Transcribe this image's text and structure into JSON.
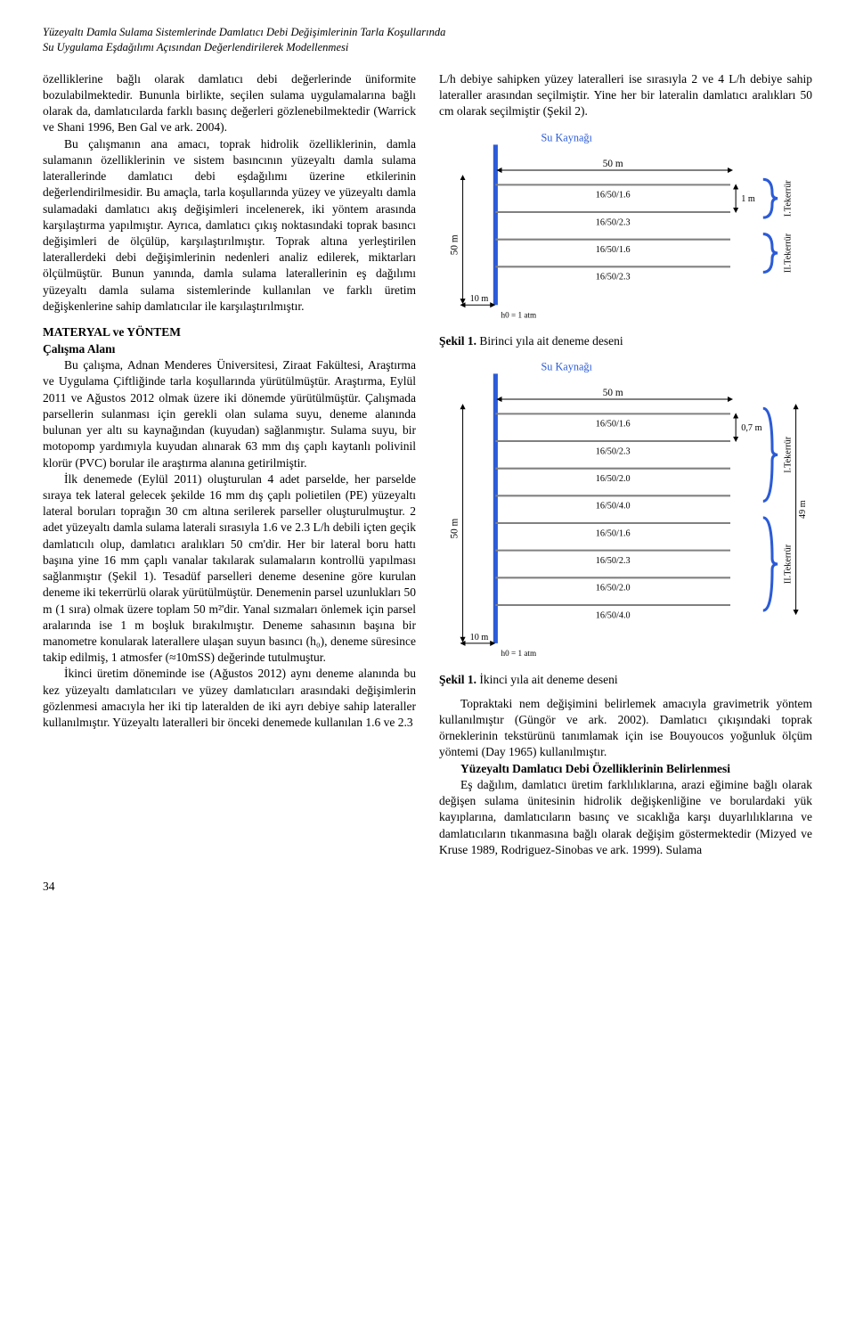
{
  "header": {
    "line1": "Yüzeyaltı Damla Sulama Sistemlerinde Damlatıcı Debi Değişimlerinin Tarla Koşullarında",
    "line2": "Su Uygulama Eşdağılımı Açısından Değerlendirilerek Modellenmesi"
  },
  "text": {
    "intro1": "özelliklerine bağlı olarak damlatıcı debi değerlerinde üniformite bozulabilmektedir. Bununla birlikte, seçilen sulama uygulamalarına bağlı olarak da, damlatıcılarda farklı basınç değerleri gözlenebilmektedir (Warrick ve Shani 1996, Ben Gal ve ark. 2004).",
    "intro2": "Bu çalışmanın ana amacı, toprak hidrolik özelliklerinin, damla sulamanın özelliklerinin ve sistem basıncının yüzeyaltı damla sulama laterallerinde damlatıcı debi eşdağılımı üzerine etkilerinin değerlendirilmesidir. Bu amaçla, tarla koşullarında yüzey ve yüzeyaltı damla sulamadaki damlatıcı akış değişimleri incelenerek, iki yöntem arasında karşılaştırma yapılmıştır. Ayrıca, damlatıcı çıkış noktasındaki toprak basıncı değişimleri de ölçülüp, karşılaştırılmıştır. Toprak altına yerleştirilen laterallerdeki debi değişimlerinin nedenleri analiz edilerek, miktarları ölçülmüştür. Bunun yanında, damla sulama laterallerinin eş dağılımı yüzeyaltı damla sulama sistemlerinde kullanılan ve farklı üretim değişkenlerine sahip damlatıcılar ile karşılaştırılmıştır.",
    "mat_title": "MATERYAL ve YÖNTEM",
    "study_title": "Çalışma Alanı",
    "study1": "Bu çalışma, Adnan Menderes Üniversitesi, Ziraat Fakültesi, Araştırma ve Uygulama Çiftliğinde tarla koşullarında yürütülmüştür. Araştırma, Eylül 2011 ve Ağustos 2012 olmak üzere iki dönemde yürütülmüştür. Çalışmada parsellerin sulanması için gerekli olan sulama suyu, deneme alanında bulunan yer altı su kaynağından (kuyudan) sağlanmıştır. Sulama suyu, bir motopomp yardımıyla kuyudan alınarak 63 mm dış çaplı kaytanlı polivinil klorür (PVC) borular ile araştırma alanına getirilmiştir.",
    "study2": "İlk denemede (Eylül 2011) oluşturulan 4 adet parselde, her parselde sıraya tek lateral gelecek şekilde 16 mm dış çaplı polietilen (PE) yüzeyaltı lateral boruları toprağın 30 cm altına serilerek parseller oluşturulmuştur. 2 adet yüzeyaltı damla sulama laterali sırasıyla 1.6 ve 2.3 L/h debili içten geçik damlatıcılı olup, damlatıcı aralıkları 50 cm'dir. Her bir lateral boru hattı başına yine 16 mm çaplı vanalar takılarak sulamaların kontrollü yapılması sağlanmıştır (Şekil 1). Tesadüf parselleri deneme desenine göre kurulan deneme iki tekerrürlü olarak yürütülmüştür. Denemenin parsel uzunlukları 50 m (1 sıra) olmak üzere toplam 50 m²'dir. Yanal sızmaları önlemek için parsel aralarında ise 1 m boşluk bırakılmıştır. Deneme sahasının başına bir manometre konularak laterallere ulaşan suyun basıncı (h₀), deneme süresince takip edilmiş, 1 atmosfer (≈10mSS) değerinde tutulmuştur.",
    "study3": "İkinci üretim döneminde ise (Ağustos 2012) aynı deneme alanında bu kez yüzeyaltı damlatıcıları ve yüzey damlatıcıları arasındaki değişimlerin gözlenmesi amacıyla her iki tip lateralden de iki ayrı debiye sahip lateraller kullanılmıştır. Yüzeyaltı lateralleri bir önceki denemede kullanılan 1.6 ve 2.3",
    "right1": "L/h debiye sahipken yüzey lateralleri ise sırasıyla 2 ve 4 L/h debiye sahip lateraller arasından seçilmiştir. Yine her bir lateralin damlatıcı aralıkları 50 cm olarak seçilmiştir (Şekil 2).",
    "caption1_b": "Şekil 1.",
    "caption1": " Birinci yıla ait deneme deseni",
    "caption2_b": "Şekil 1.",
    "caption2": " İkinci yıla ait deneme deseni",
    "right2": "Topraktaki nem değişimini belirlemek amacıyla gravimetrik yöntem kullanılmıştır (Güngör ve ark. 2002). Damlatıcı çıkışındaki toprak örneklerinin tekstürünü tanımlamak için ise Bouyoucos yoğunluk ölçüm yöntemi (Day 1965) kullanılmıştır.",
    "yuzey_title": "Yüzeyaltı Damlatıcı Debi Özelliklerinin Belirlenmesi",
    "right3": "Eş dağılım, damlatıcı üretim farklılıklarına, arazi eğimine bağlı olarak değişen sulama ünitesinin hidrolik değişkenliğine ve borulardaki yük kayıplarına, damlatıcıların basınç ve sıcaklığa karşı duyarlılıklarına ve damlatıcıların tıkanmasına bağlı olarak değişim göstermektedir (Mizyed ve Kruse 1989, Rodriguez-Sinobas ve ark. 1999). Sulama"
  },
  "fig1": {
    "title": "Su Kaynağı",
    "title_color": "#2b5bd7",
    "main_line_color": "#2b5bd7",
    "lateral_color": "#808080",
    "text_color": "#000000",
    "arrow_label_left": "50 m",
    "arrow_label_bottom": "10 m",
    "h0": "h0 = 1 atm",
    "width_label": "50 m",
    "gap_label": "1 m",
    "rows": [
      {
        "label": "16/50/1.6",
        "group": "I.Tekerrür"
      },
      {
        "label": "16/50/2.3",
        "group": "I.Tekerrür"
      },
      {
        "label": "16/50/1.6",
        "group": "II.Tekerrür"
      },
      {
        "label": "16/50/2.3",
        "group": "II.Tekerrür"
      }
    ]
  },
  "fig2": {
    "title": "Su Kaynağı",
    "title_color": "#2b5bd7",
    "main_line_color": "#2b5bd7",
    "lateral_color": "#808080",
    "text_color": "#000000",
    "arrow_label_left": "50 m",
    "arrow_label_bottom": "10 m",
    "h0": "h0 = 1 atm",
    "width_label": "50 m",
    "gap_label": "0,7 m",
    "height_label": "49 m",
    "rows": [
      {
        "label": "16/50/1.6",
        "group": "I.Tekerrür"
      },
      {
        "label": "16/50/2.3",
        "group": "I.Tekerrür"
      },
      {
        "label": "16/50/2.0",
        "group": "I.Tekerrür"
      },
      {
        "label": "16/50/4.0",
        "group": "I.Tekerrür"
      },
      {
        "label": "16/50/1.6",
        "group": "II.Tekerrür"
      },
      {
        "label": "16/50/2.3",
        "group": "II.Tekerrür"
      },
      {
        "label": "16/50/2.0",
        "group": "II.Tekerrür"
      },
      {
        "label": "16/50/4.0",
        "group": "II.Tekerrür"
      }
    ]
  },
  "page": "34"
}
